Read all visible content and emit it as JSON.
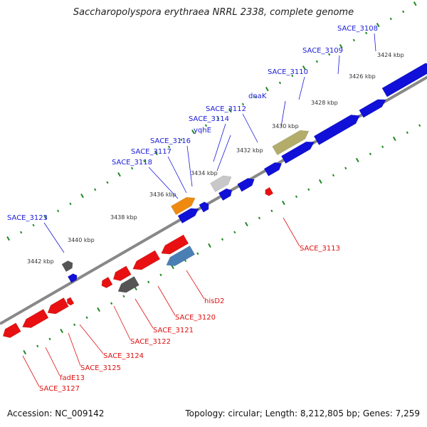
{
  "title": "Saccharopolyspora erythraea NRRL 2338, complete genome",
  "footer": {
    "accession": "Accession: NC_009142",
    "info": "Topology: circular; Length: 8,212,805 bp; Genes: 7,259"
  },
  "colors": {
    "plus_label": "#1a1adb",
    "minus_label": "#e01010",
    "forward_gene": "#1010d8",
    "reverse_gene": "#e81010",
    "backbone": "#888888",
    "ticks": "#1f8a1f"
  },
  "ticks": [
    "3424 kbp",
    "3426 kbp",
    "3428 kbp",
    "3430 kbp",
    "3432 kbp",
    "3434 kbp",
    "3436 kbp",
    "3438 kbp",
    "3440 kbp",
    "3442 kbp"
  ],
  "genes_plus": [
    {
      "label": "SACE_3108",
      "color": "#1010d8"
    },
    {
      "label": "SACE_3109",
      "color": "#1010d8"
    },
    {
      "label": "SACE_3110",
      "color": "#1010d8"
    },
    {
      "label": "dnaK",
      "color": "#b3ac6a"
    },
    {
      "label": "SACE_3112",
      "color": "#1010d8"
    },
    {
      "label": "SACE_3114",
      "color": "#1010d8"
    },
    {
      "label": "yqhE",
      "color": "#c8c8c8"
    },
    {
      "label": "SACE_3116",
      "color": "#1010d8"
    },
    {
      "label": "SACE_3117",
      "color": "#1010d8"
    },
    {
      "label": "SACE_3118",
      "color": "#ee8a10"
    },
    {
      "label": "SACE_3123",
      "color": "#555555"
    }
  ],
  "genes_minus": [
    {
      "label": "SACE_3113",
      "color": "#e81010"
    },
    {
      "label": "hisD2",
      "color": "#4a7fb5"
    },
    {
      "label": "SACE_3120",
      "color": "#e81010"
    },
    {
      "label": "SACE_3121",
      "color": "#e81010"
    },
    {
      "label": "SACE_3122",
      "color": "#555555"
    },
    {
      "label": "SACE_3124",
      "color": "#e81010"
    },
    {
      "label": "SACE_3125",
      "color": "#e81010"
    },
    {
      "label": "fadE13",
      "color": "#e81010"
    },
    {
      "label": "SACE_3127",
      "color": "#e81010"
    }
  ]
}
